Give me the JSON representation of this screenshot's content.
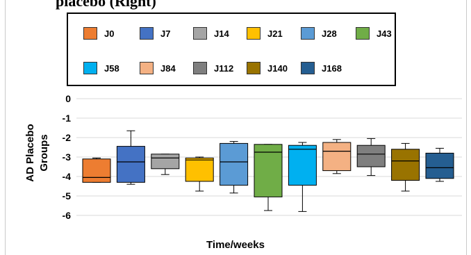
{
  "caption_fragment": "placebo (Right)",
  "chart_data": {
    "type": "box",
    "title": "",
    "xlabel": "Time/weeks",
    "ylabel": "AD Placebo Groups",
    "ylim": [
      -6,
      0
    ],
    "yticks": [
      "0",
      "-1",
      "-2",
      "-3",
      "-4",
      "-5",
      "-6"
    ],
    "grid": "horizontal",
    "legend_position": "top",
    "series": [
      {
        "name": "J0",
        "color": "#ED7D31",
        "min": -4.3,
        "q1": -4.3,
        "median": -4.05,
        "q3": -3.1,
        "max": -3.05
      },
      {
        "name": "J7",
        "color": "#4472C4",
        "min": -4.4,
        "q1": -4.3,
        "median": -3.25,
        "q3": -2.45,
        "max": -1.65
      },
      {
        "name": "J14",
        "color": "#A5A5A5",
        "min": -3.9,
        "q1": -3.6,
        "median": -3.05,
        "q3": -2.85,
        "max": -2.85
      },
      {
        "name": "J21",
        "color": "#FFC000",
        "min": -4.75,
        "q1": -4.25,
        "median": -3.15,
        "q3": -3.05,
        "max": -3.0
      },
      {
        "name": "J28",
        "color": "#5B9BD5",
        "min": -4.85,
        "q1": -4.45,
        "median": -3.25,
        "q3": -2.3,
        "max": -2.2
      },
      {
        "name": "J43",
        "color": "#70AD47",
        "min": -5.75,
        "q1": -5.05,
        "median": -2.75,
        "q3": -2.35,
        "max": -2.35
      },
      {
        "name": "J58",
        "color": "#00B0F0",
        "min": -5.8,
        "q1": -4.45,
        "median": -2.6,
        "q3": -2.4,
        "max": -2.25
      },
      {
        "name": "J84",
        "color": "#F4B183",
        "min": -3.85,
        "q1": -3.7,
        "median": -2.7,
        "q3": -2.25,
        "max": -2.1
      },
      {
        "name": "J112",
        "color": "#7F7F7F",
        "min": -3.95,
        "q1": -3.5,
        "median": -2.85,
        "q3": -2.4,
        "max": -2.05
      },
      {
        "name": "J140",
        "color": "#997300",
        "min": -4.75,
        "q1": -4.2,
        "median": -3.2,
        "q3": -2.6,
        "max": -2.3
      },
      {
        "name": "J168",
        "color": "#255E91",
        "min": -4.25,
        "q1": -4.1,
        "median": -3.55,
        "q3": -2.8,
        "max": -2.55
      }
    ]
  }
}
